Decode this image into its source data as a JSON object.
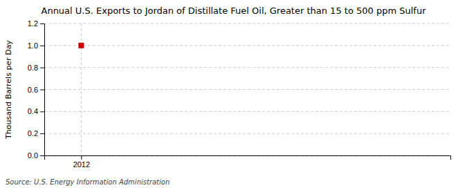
{
  "chart_data": {
    "type": "scatter",
    "title": "Annual U.S. Exports to Jordan of Distillate Fuel Oil, Greater than 15 to 500 ppm Sulfur",
    "ylabel": "Thousand Barrels per Day",
    "annotations": [
      "Source: U.S. Energy Information Administration"
    ],
    "x": [
      2012
    ],
    "values": [
      1.0
    ],
    "color": "#cc0000",
    "marker": "square",
    "xlim": [
      2011.8,
      2014.0
    ],
    "xticks": [
      2012
    ],
    "ylim": [
      0.0,
      1.2
    ],
    "yticks": [
      {
        "value": 0.0,
        "label": "0.0"
      },
      0.2,
      0.4,
      0.6,
      0.8,
      {
        "value": 1.0,
        "label": "1.0"
      },
      1.2
    ],
    "grid": true
  }
}
